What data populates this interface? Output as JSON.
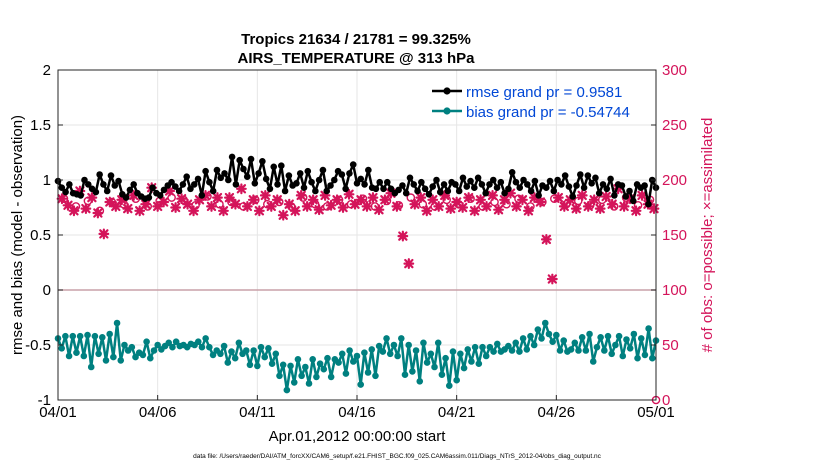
{
  "chart_data": {
    "type": "line",
    "title": "Tropics 21634 / 21781 = 99.325%",
    "subtitle": "AIRS_TEMPERATURE @ 313 hPa",
    "xlabel": "Apr.01,2012 00:00:00 start",
    "ylabel": "rmse and bias (model - observation)",
    "ylabel_right": "# of obs: o=possible; ×=assimilated",
    "footnote": "data file: /Users/raeder/DAI/ATM_forcXX/CAM6_setup/f.e21.FHIST_BGC.f09_025.CAM6assim.011/Diags_NTrS_2012-04/obs_diag_output.nc",
    "xlim": [
      0,
      30
    ],
    "ylim": [
      -1,
      2
    ],
    "ylim_right": [
      0,
      300
    ],
    "x_ticks": [
      0,
      5,
      10,
      15,
      20,
      25,
      30
    ],
    "x_tick_labels": [
      "04/01",
      "04/06",
      "04/11",
      "04/16",
      "04/21",
      "04/26",
      "05/01"
    ],
    "y_ticks": [
      -1,
      -0.5,
      0,
      0.5,
      1,
      1.5,
      2
    ],
    "y_tick_labels": [
      "-1",
      "-0.5",
      "0",
      "0.5",
      "1",
      "1.5",
      "2"
    ],
    "y_right_ticks": [
      0,
      50,
      100,
      150,
      200,
      250,
      300
    ],
    "y_right_tick_labels": [
      "0",
      "50",
      "100",
      "150",
      "200",
      "250",
      "300"
    ],
    "legend": [
      "rmse grand pr = 0.9581",
      "bias grand pr = -0.54744"
    ],
    "legend_position": "top-right",
    "colors": {
      "rmse": "#000000",
      "bias": "#008080",
      "obs": "#d4145a",
      "zero_line": "#c9a0a8",
      "grid": "#e6e6e6",
      "legend_text": "#0047d6"
    },
    "series": [
      {
        "name": "rmse",
        "values": [
          0.99,
          0.93,
          0.89,
          0.96,
          0.88,
          0.87,
          0.86,
          1.0,
          0.96,
          0.92,
          0.89,
          1.05,
          0.96,
          0.9,
          1.04,
          0.95,
          0.99,
          0.87,
          0.84,
          0.91,
          0.96,
          0.88,
          0.85,
          0.83,
          0.84,
          0.93,
          0.88,
          0.86,
          0.91,
          0.95,
          0.98,
          0.94,
          0.9,
          0.96,
          1.03,
          0.92,
          0.96,
          1.01,
          0.86,
          1.08,
          0.98,
          0.9,
          1.09,
          1.02,
          1.06,
          1.0,
          1.21,
          0.96,
          1.18,
          1.1,
          1.03,
          1.19,
          0.97,
          1.06,
          1.17,
          1.01,
          0.92,
          1.12,
          0.96,
          1.13,
          0.9,
          1.04,
          0.95,
          0.97,
          1.06,
          0.93,
          1.08,
          0.98,
          0.9,
          1.0,
          1.09,
          0.9,
          0.95,
          1.0,
          1.08,
          1.05,
          0.92,
          1.06,
          1.14,
          0.97,
          1.01,
          0.96,
          1.09,
          0.93,
          0.92,
          0.98,
          0.92,
          0.98,
          0.92,
          0.88,
          0.91,
          0.95,
          0.88,
          1.02,
          0.96,
          0.9,
          0.98,
          0.92,
          0.87,
          0.94,
          1.0,
          0.89,
          0.96,
          0.9,
          0.98,
          0.96,
          0.9,
          1.02,
          0.94,
          0.99,
          0.93,
          1.02,
          0.96,
          0.88,
          0.96,
          1.0,
          0.93,
          0.98,
          0.88,
          0.92,
          1.07,
          0.98,
          0.93,
          1.0,
          0.96,
          0.9,
          0.99,
          0.86,
          0.95,
          0.93,
          0.99,
          0.9,
          1.0,
          0.96,
          1.04,
          0.94,
          0.85,
          0.95,
          1.05,
          0.93,
          1.04,
          0.97,
          1.02,
          0.88,
          0.96,
          0.92,
          1.01,
          0.86,
          0.96,
          0.95,
          0.85,
          0.9,
          0.81,
          0.96,
          0.93,
          0.95,
          0.78,
          1.0,
          0.93
        ]
      },
      {
        "name": "bias",
        "values": [
          -0.44,
          -0.53,
          -0.42,
          -0.6,
          -0.42,
          -0.57,
          -0.42,
          -0.6,
          -0.41,
          -0.7,
          -0.42,
          -0.58,
          -0.43,
          -0.64,
          -0.4,
          -0.61,
          -0.3,
          -0.64,
          -0.5,
          -0.55,
          -0.52,
          -0.61,
          -0.57,
          -0.59,
          -0.47,
          -0.62,
          -0.55,
          -0.5,
          -0.54,
          -0.51,
          -0.48,
          -0.52,
          -0.47,
          -0.51,
          -0.5,
          -0.52,
          -0.49,
          -0.5,
          -0.47,
          -0.52,
          -0.44,
          -0.52,
          -0.59,
          -0.55,
          -0.58,
          -0.51,
          -0.66,
          -0.56,
          -0.62,
          -0.48,
          -0.58,
          -0.55,
          -0.68,
          -0.55,
          -0.69,
          -0.52,
          -0.61,
          -0.53,
          -0.67,
          -0.58,
          -0.78,
          -0.68,
          -0.91,
          -0.69,
          -0.84,
          -0.63,
          -0.78,
          -0.7,
          -0.85,
          -0.63,
          -0.79,
          -0.67,
          -0.72,
          -0.62,
          -0.79,
          -0.63,
          -0.66,
          -0.58,
          -0.76,
          -0.55,
          -0.65,
          -0.6,
          -0.86,
          -0.57,
          -0.75,
          -0.54,
          -0.78,
          -0.51,
          -0.56,
          -0.44,
          -0.58,
          -0.5,
          -0.6,
          -0.44,
          -0.77,
          -0.5,
          -0.74,
          -0.55,
          -0.83,
          -0.48,
          -0.66,
          -0.58,
          -0.7,
          -0.48,
          -0.77,
          -0.62,
          -0.87,
          -0.56,
          -0.82,
          -0.58,
          -0.71,
          -0.54,
          -0.65,
          -0.52,
          -0.67,
          -0.52,
          -0.6,
          -0.52,
          -0.56,
          -0.49,
          -0.56,
          -0.54,
          -0.51,
          -0.55,
          -0.48,
          -0.56,
          -0.44,
          -0.54,
          -0.42,
          -0.5,
          -0.36,
          -0.44,
          -0.3,
          -0.4,
          -0.47,
          -0.41,
          -0.55,
          -0.46,
          -0.56,
          -0.54,
          -0.48,
          -0.55,
          -0.43,
          -0.55,
          -0.4,
          -0.65,
          -0.52,
          -0.43,
          -0.55,
          -0.42,
          -0.58,
          -0.5,
          -0.42,
          -0.6,
          -0.45,
          -0.53,
          -0.4,
          -0.62,
          -0.44,
          -0.59,
          -0.35,
          -0.62,
          -0.46
        ]
      }
    ],
    "obs_assimilated": [
      {
        "x": 0.2,
        "v": 183
      },
      {
        "x": 0.5,
        "v": 177
      },
      {
        "x": 0.8,
        "v": 172
      },
      {
        "x": 1.1,
        "v": 190
      },
      {
        "x": 1.4,
        "v": 174
      },
      {
        "x": 1.7,
        "v": 184
      },
      {
        "x": 2.0,
        "v": 170
      },
      {
        "x": 2.3,
        "v": 151
      },
      {
        "x": 2.6,
        "v": 180
      },
      {
        "x": 2.9,
        "v": 176
      },
      {
        "x": 3.2,
        "v": 182
      },
      {
        "x": 3.5,
        "v": 174
      },
      {
        "x": 3.8,
        "v": 186
      },
      {
        "x": 4.1,
        "v": 172
      },
      {
        "x": 4.4,
        "v": 178
      },
      {
        "x": 4.7,
        "v": 193
      },
      {
        "x": 5.0,
        "v": 176
      },
      {
        "x": 5.3,
        "v": 180
      },
      {
        "x": 5.6,
        "v": 190
      },
      {
        "x": 5.9,
        "v": 175
      },
      {
        "x": 6.2,
        "v": 183
      },
      {
        "x": 6.5,
        "v": 178
      },
      {
        "x": 6.8,
        "v": 172
      },
      {
        "x": 7.1,
        "v": 182
      },
      {
        "x": 7.4,
        "v": 186
      },
      {
        "x": 7.7,
        "v": 176
      },
      {
        "x": 8.0,
        "v": 184
      },
      {
        "x": 8.3,
        "v": 172
      },
      {
        "x": 8.6,
        "v": 184
      },
      {
        "x": 8.9,
        "v": 178
      },
      {
        "x": 9.2,
        "v": 192
      },
      {
        "x": 9.5,
        "v": 176
      },
      {
        "x": 9.8,
        "v": 182
      },
      {
        "x": 10.1,
        "v": 172
      },
      {
        "x": 10.4,
        "v": 186
      },
      {
        "x": 10.7,
        "v": 176
      },
      {
        "x": 11.0,
        "v": 182
      },
      {
        "x": 11.3,
        "v": 168
      },
      {
        "x": 11.6,
        "v": 178
      },
      {
        "x": 11.9,
        "v": 172
      },
      {
        "x": 12.2,
        "v": 186
      },
      {
        "x": 12.5,
        "v": 176
      },
      {
        "x": 12.8,
        "v": 182
      },
      {
        "x": 13.1,
        "v": 173
      },
      {
        "x": 13.4,
        "v": 186
      },
      {
        "x": 13.7,
        "v": 177
      },
      {
        "x": 14.0,
        "v": 182
      },
      {
        "x": 14.3,
        "v": 175
      },
      {
        "x": 14.6,
        "v": 187
      },
      {
        "x": 14.9,
        "v": 178
      },
      {
        "x": 15.2,
        "v": 182
      },
      {
        "x": 15.5,
        "v": 176
      },
      {
        "x": 15.8,
        "v": 184
      },
      {
        "x": 16.1,
        "v": 173
      },
      {
        "x": 16.4,
        "v": 182
      },
      {
        "x": 16.7,
        "v": 188
      },
      {
        "x": 17.0,
        "v": 176
      },
      {
        "x": 17.3,
        "v": 149
      },
      {
        "x": 17.6,
        "v": 124
      },
      {
        "x": 17.9,
        "v": 178
      },
      {
        "x": 18.2,
        "v": 184
      },
      {
        "x": 18.5,
        "v": 172
      },
      {
        "x": 18.8,
        "v": 182
      },
      {
        "x": 19.1,
        "v": 176
      },
      {
        "x": 19.4,
        "v": 186
      },
      {
        "x": 19.7,
        "v": 174
      },
      {
        "x": 20.0,
        "v": 180
      },
      {
        "x": 20.3,
        "v": 175
      },
      {
        "x": 20.6,
        "v": 184
      },
      {
        "x": 20.9,
        "v": 172
      },
      {
        "x": 21.2,
        "v": 182
      },
      {
        "x": 21.5,
        "v": 176
      },
      {
        "x": 21.8,
        "v": 186
      },
      {
        "x": 22.1,
        "v": 173
      },
      {
        "x": 22.4,
        "v": 182
      },
      {
        "x": 22.7,
        "v": 188
      },
      {
        "x": 23.0,
        "v": 176
      },
      {
        "x": 23.3,
        "v": 182
      },
      {
        "x": 23.6,
        "v": 172
      },
      {
        "x": 23.9,
        "v": 184
      },
      {
        "x": 24.2,
        "v": 180
      },
      {
        "x": 24.5,
        "v": 146
      },
      {
        "x": 24.8,
        "v": 110
      },
      {
        "x": 25.1,
        "v": 184
      },
      {
        "x": 25.4,
        "v": 176
      },
      {
        "x": 25.7,
        "v": 182
      },
      {
        "x": 26.0,
        "v": 174
      },
      {
        "x": 26.3,
        "v": 186
      },
      {
        "x": 26.6,
        "v": 176
      },
      {
        "x": 26.9,
        "v": 182
      },
      {
        "x": 27.2,
        "v": 174
      },
      {
        "x": 27.5,
        "v": 185
      },
      {
        "x": 27.8,
        "v": 178
      },
      {
        "x": 28.1,
        "v": 192
      },
      {
        "x": 28.4,
        "v": 176
      },
      {
        "x": 28.7,
        "v": 183
      },
      {
        "x": 29.0,
        "v": 172
      },
      {
        "x": 29.3,
        "v": 186
      },
      {
        "x": 29.6,
        "v": 178
      },
      {
        "x": 29.9,
        "v": 174
      }
    ],
    "obs_possible": [
      {
        "x": 0.3,
        "v": 183
      },
      {
        "x": 0.9,
        "v": 176
      },
      {
        "x": 1.5,
        "v": 181
      },
      {
        "x": 2.1,
        "v": 172
      },
      {
        "x": 2.7,
        "v": 180
      },
      {
        "x": 3.3,
        "v": 178
      },
      {
        "x": 3.9,
        "v": 183
      },
      {
        "x": 4.5,
        "v": 176
      },
      {
        "x": 5.1,
        "v": 181
      },
      {
        "x": 5.7,
        "v": 184
      },
      {
        "x": 6.3,
        "v": 182
      },
      {
        "x": 6.9,
        "v": 177
      },
      {
        "x": 7.5,
        "v": 185
      },
      {
        "x": 8.1,
        "v": 178
      },
      {
        "x": 8.7,
        "v": 180
      },
      {
        "x": 9.3,
        "v": 176
      },
      {
        "x": 9.9,
        "v": 182
      },
      {
        "x": 10.5,
        "v": 178
      },
      {
        "x": 11.1,
        "v": 180
      },
      {
        "x": 11.7,
        "v": 176
      },
      {
        "x": 12.3,
        "v": 184
      },
      {
        "x": 12.9,
        "v": 178
      },
      {
        "x": 13.5,
        "v": 176
      },
      {
        "x": 14.1,
        "v": 182
      },
      {
        "x": 14.7,
        "v": 178
      },
      {
        "x": 15.3,
        "v": 183
      },
      {
        "x": 15.9,
        "v": 176
      },
      {
        "x": 16.5,
        "v": 181
      },
      {
        "x": 17.1,
        "v": 177
      },
      {
        "x": 17.7,
        "v": 184
      },
      {
        "x": 18.3,
        "v": 178
      },
      {
        "x": 18.9,
        "v": 176
      },
      {
        "x": 19.5,
        "v": 182
      },
      {
        "x": 20.1,
        "v": 178
      },
      {
        "x": 20.7,
        "v": 183
      },
      {
        "x": 21.3,
        "v": 176
      },
      {
        "x": 21.9,
        "v": 180
      },
      {
        "x": 22.5,
        "v": 178
      },
      {
        "x": 23.1,
        "v": 183
      },
      {
        "x": 23.7,
        "v": 176
      },
      {
        "x": 24.3,
        "v": 180
      },
      {
        "x": 24.9,
        "v": 183
      },
      {
        "x": 25.5,
        "v": 178
      },
      {
        "x": 26.1,
        "v": 181
      },
      {
        "x": 26.7,
        "v": 177
      },
      {
        "x": 27.3,
        "v": 182
      },
      {
        "x": 27.9,
        "v": 176
      },
      {
        "x": 28.5,
        "v": 184
      },
      {
        "x": 29.1,
        "v": 177
      },
      {
        "x": 29.7,
        "v": 182
      },
      {
        "x": 30.0,
        "v": 0
      }
    ]
  }
}
